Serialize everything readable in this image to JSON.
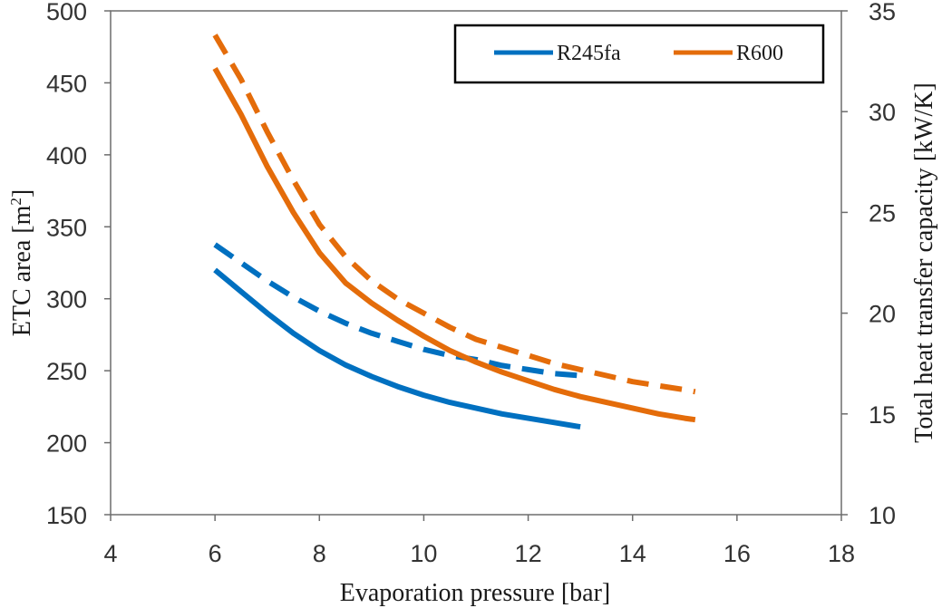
{
  "chart_data": {
    "type": "line",
    "xlabel": "Evaporation pressure [bar]",
    "ylabel_left": "ETC area [m²]",
    "ylabel_left_text": "ETC area [m",
    "ylabel_left_sup": "2",
    "ylabel_left_close": "]",
    "ylabel_right": "Total heat transfer capacity [kW/K]",
    "xlim": [
      4,
      18
    ],
    "x_ticks": [
      "4",
      "6",
      "8",
      "10",
      "12",
      "14",
      "16",
      "18"
    ],
    "ylim_left": [
      150,
      500
    ],
    "y_left_ticks": [
      "150",
      "200",
      "250",
      "300",
      "350",
      "400",
      "450",
      "500"
    ],
    "ylim_right": [
      10,
      35
    ],
    "y_right_ticks": [
      "10",
      "15",
      "20",
      "25",
      "30",
      "35"
    ],
    "grid": false,
    "legend_position": "top-right",
    "legend": [
      {
        "label": "R245fa",
        "color": "#0070C0"
      },
      {
        "label": "R600",
        "color": "#E46C0A"
      }
    ],
    "series": [
      {
        "fluid": "R245fa",
        "axis": "left",
        "style": "solid",
        "color": "#0070C0",
        "x": [
          6,
          6.5,
          7,
          7.5,
          8,
          8.5,
          9,
          9.5,
          10,
          10.5,
          11,
          11.5,
          12,
          12.5,
          13
        ],
        "y": [
          320,
          305,
          290,
          276,
          264,
          254,
          246,
          239,
          233,
          228,
          224,
          220,
          217,
          214,
          211
        ]
      },
      {
        "fluid": "R245fa",
        "axis": "right",
        "style": "dashed",
        "color": "#0070C0",
        "x": [
          6,
          6.5,
          7,
          7.5,
          8,
          8.5,
          9,
          9.5,
          10,
          10.5,
          11,
          11.5,
          12,
          12.5,
          13
        ],
        "y": [
          23.4,
          22.5,
          21.6,
          20.8,
          20.1,
          19.5,
          19.0,
          18.6,
          18.2,
          17.9,
          17.7,
          17.4,
          17.2,
          17.0,
          16.9
        ]
      },
      {
        "fluid": "R600",
        "axis": "left",
        "style": "solid",
        "color": "#E46C0A",
        "x": [
          6,
          6.5,
          7,
          7.5,
          8,
          8.5,
          9,
          9.5,
          10,
          10.5,
          11,
          11.5,
          12,
          12.5,
          13,
          13.5,
          14,
          14.5,
          15,
          15.2
        ],
        "y": [
          460,
          428,
          392,
          360,
          332,
          311,
          297,
          285,
          274,
          264,
          256,
          249,
          243,
          237,
          232,
          228,
          224,
          220,
          217,
          216
        ]
      },
      {
        "fluid": "R600",
        "axis": "right",
        "style": "dashed",
        "color": "#E46C0A",
        "x": [
          6,
          6.5,
          7,
          7.5,
          8,
          8.5,
          9,
          9.5,
          10,
          10.5,
          11,
          11.5,
          12,
          12.5,
          13,
          13.5,
          14,
          14.5,
          15,
          15.2
        ],
        "y": [
          33.8,
          31.6,
          29.0,
          26.6,
          24.4,
          22.8,
          21.6,
          20.7,
          20.0,
          19.3,
          18.7,
          18.3,
          17.9,
          17.5,
          17.2,
          16.9,
          16.6,
          16.4,
          16.2,
          16.1
        ]
      }
    ]
  }
}
